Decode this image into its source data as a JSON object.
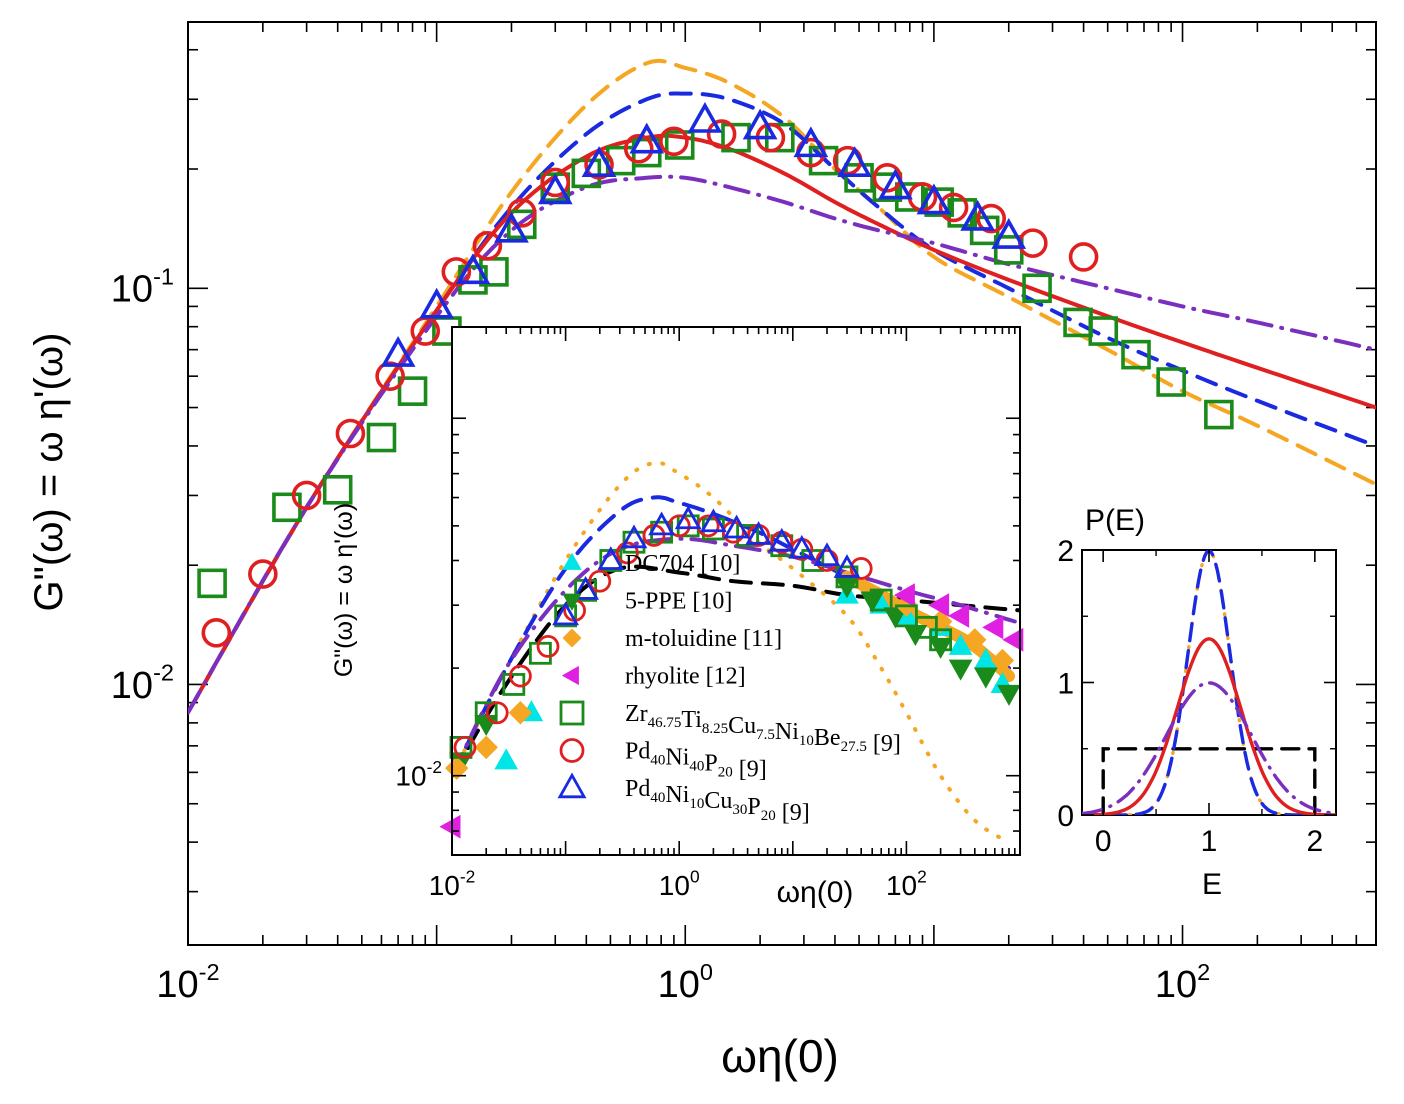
{
  "chart_data": [
    {
      "id": "main",
      "type": "line",
      "scale": "log-log",
      "xlabel": "ωη(0)",
      "ylabel": "G\"(ω) = ω η'(ω)",
      "xlim": [
        0.01,
        600
      ],
      "ylim": [
        0.0022,
        0.47
      ],
      "x_ticks": [
        {
          "value": 0.01,
          "base": "10",
          "exp": "-2"
        },
        {
          "value": 1,
          "base": "10",
          "exp": "0"
        },
        {
          "value": 100,
          "base": "10",
          "exp": "2"
        }
      ],
      "y_ticks": [
        {
          "value": 0.01,
          "base": "10",
          "exp": "-2"
        },
        {
          "value": 0.1,
          "base": "10",
          "exp": "-1"
        }
      ],
      "series": [
        {
          "name": "Zr46.75Ti8.25Cu7.5Ni10Be27.5 [9]",
          "marker": "square",
          "color": "#1a8a1a",
          "x": [
            0.0125,
            0.025,
            0.04,
            0.06,
            0.08,
            0.11,
            0.14,
            0.17,
            0.22,
            0.3,
            0.4,
            0.55,
            0.7,
            0.95,
            1.6,
            2.4,
            3.6,
            5.0,
            6.5,
            8.0,
            10.5,
            13,
            16,
            20,
            26,
            38,
            48,
            65,
            90,
            140
          ],
          "y": [
            0.018,
            0.028,
            0.031,
            0.042,
            0.055,
            0.078,
            0.105,
            0.11,
            0.145,
            0.18,
            0.195,
            0.21,
            0.22,
            0.23,
            0.24,
            0.24,
            0.21,
            0.19,
            0.18,
            0.17,
            0.165,
            0.155,
            0.14,
            0.125,
            0.1,
            0.082,
            0.078,
            0.068,
            0.058,
            0.048
          ]
        },
        {
          "name": "Pd40Ni40P20 [9]",
          "marker": "circle",
          "color": "#e02020",
          "x": [
            0.013,
            0.02,
            0.03,
            0.045,
            0.065,
            0.09,
            0.12,
            0.16,
            0.22,
            0.3,
            0.45,
            0.65,
            0.9,
            1.4,
            2.2,
            3.2,
            4.5,
            6.5,
            9,
            12,
            17,
            25,
            40
          ],
          "y": [
            0.0135,
            0.019,
            0.03,
            0.043,
            0.06,
            0.078,
            0.11,
            0.128,
            0.155,
            0.185,
            0.205,
            0.225,
            0.235,
            0.245,
            0.24,
            0.22,
            0.21,
            0.19,
            0.17,
            0.16,
            0.15,
            0.13,
            0.12
          ]
        },
        {
          "name": "Pd40Ni10Cu30P20 [9]",
          "marker": "triangle",
          "color": "#1a2ae0",
          "x": [
            0.07,
            0.1,
            0.14,
            0.2,
            0.3,
            0.45,
            0.7,
            1.2,
            2.0,
            3.2,
            4.8,
            7,
            10,
            15,
            20
          ],
          "y": [
            0.068,
            0.09,
            0.11,
            0.14,
            0.175,
            0.205,
            0.235,
            0.265,
            0.255,
            0.23,
            0.205,
            0.18,
            0.165,
            0.15,
            0.135
          ]
        }
      ],
      "curves": [
        {
          "name": "dashed-orange",
          "color": "#f5a623",
          "style": "dashed",
          "x": [
            0.01,
            0.03,
            0.1,
            0.2,
            0.4,
            0.7,
            1.0,
            1.5,
            2.5,
            4,
            6,
            10,
            20,
            50,
            100,
            200,
            600
          ],
          "y": [
            0.0085,
            0.028,
            0.09,
            0.175,
            0.29,
            0.37,
            0.36,
            0.33,
            0.27,
            0.2,
            0.16,
            0.12,
            0.095,
            0.07,
            0.055,
            0.045,
            0.032
          ]
        },
        {
          "name": "dashed-blue",
          "color": "#1a2ae0",
          "style": "dashed",
          "x": [
            0.01,
            0.03,
            0.1,
            0.2,
            0.4,
            0.7,
            1.0,
            1.5,
            2.5,
            4,
            6,
            10,
            20,
            50,
            100,
            200,
            600
          ],
          "y": [
            0.0085,
            0.028,
            0.088,
            0.16,
            0.245,
            0.3,
            0.31,
            0.3,
            0.26,
            0.2,
            0.16,
            0.125,
            0.1,
            0.075,
            0.062,
            0.052,
            0.04
          ]
        },
        {
          "name": "solid-red",
          "color": "#e02020",
          "style": "solid",
          "x": [
            0.01,
            0.03,
            0.1,
            0.2,
            0.4,
            0.7,
            1.0,
            1.5,
            2.5,
            4,
            6,
            10,
            20,
            50,
            100,
            200,
            600
          ],
          "y": [
            0.0085,
            0.028,
            0.088,
            0.155,
            0.215,
            0.24,
            0.24,
            0.225,
            0.195,
            0.165,
            0.145,
            0.125,
            0.105,
            0.085,
            0.073,
            0.063,
            0.05
          ]
        },
        {
          "name": "dashdot-purple",
          "color": "#7b2fbe",
          "style": "dashdot",
          "x": [
            0.01,
            0.03,
            0.1,
            0.2,
            0.4,
            0.7,
            1.0,
            1.5,
            2.5,
            4,
            6,
            10,
            20,
            50,
            100,
            200,
            600
          ],
          "y": [
            0.0085,
            0.028,
            0.085,
            0.14,
            0.18,
            0.19,
            0.19,
            0.18,
            0.165,
            0.15,
            0.14,
            0.13,
            0.115,
            0.1,
            0.09,
            0.082,
            0.07
          ]
        }
      ]
    },
    {
      "id": "inset-left",
      "type": "scatter",
      "scale": "log-log",
      "xlabel": "ωη(0)",
      "ylabel": "G\"(ω) = ω η'(ω)",
      "xlim": [
        0.01,
        1000
      ],
      "ylim": [
        0.006,
        0.18
      ],
      "x_ticks": [
        {
          "value": 0.01,
          "base": "10",
          "exp": "-2"
        },
        {
          "value": 1,
          "base": "10",
          "exp": "0"
        },
        {
          "value": 100,
          "base": "10",
          "exp": "2"
        }
      ],
      "y_ticks": [
        {
          "value": 0.01,
          "base": "10",
          "exp": "-2"
        }
      ],
      "legend": {
        "position": "bottom-center",
        "entries": [
          {
            "marker": "triangle-filled",
            "color": "#00e5e5",
            "label": "DC704 [10]"
          },
          {
            "marker": "triangle-down-filled",
            "color": "#1a8a1a",
            "label": "5-PPE [10]"
          },
          {
            "marker": "diamond-filled",
            "color": "#f5a623",
            "label": "m-toluidine [11]"
          },
          {
            "marker": "triangle-left-filled",
            "color": "#e020e0",
            "label": "rhyolite [12]"
          },
          {
            "marker": "square",
            "color": "#1a8a1a",
            "label": "Zr46.75Ti8.25Cu7.5Ni10Be27.5 [9]",
            "formula": [
              {
                "t": "Zr",
                "s": "46.75"
              },
              {
                "t": "Ti",
                "s": "8.25"
              },
              {
                "t": "Cu",
                "s": "7.5"
              },
              {
                "t": "Ni",
                "s": "10"
              },
              {
                "t": "Be",
                "s": "27.5"
              }
            ],
            "ref": " [9]"
          },
          {
            "marker": "circle",
            "color": "#e02020",
            "label": "Pd40Ni40P20 [9]",
            "formula": [
              {
                "t": "Pd",
                "s": "40"
              },
              {
                "t": "Ni",
                "s": "40"
              },
              {
                "t": "P",
                "s": "20"
              }
            ],
            "ref": " [9]"
          },
          {
            "marker": "triangle",
            "color": "#1a2ae0",
            "label": "Pd40Ni10Cu30P20 [9]",
            "formula": [
              {
                "t": "Pd",
                "s": "40"
              },
              {
                "t": "Ni",
                "s": "10"
              },
              {
                "t": "Cu",
                "s": "30"
              },
              {
                "t": "P",
                "s": "20"
              }
            ],
            "ref": " [9]"
          }
        ]
      },
      "series": [
        {
          "name": "DC704 [10]",
          "marker": "triangle-filled",
          "color": "#00e5e5",
          "x": [
            0.03,
            0.05,
            30,
            60,
            100,
            200,
            300,
            500,
            700
          ],
          "y": [
            0.011,
            0.015,
            0.032,
            0.03,
            0.028,
            0.026,
            0.023,
            0.021,
            0.018
          ]
        },
        {
          "name": "5-PPE [10]",
          "marker": "triangle-down-filled",
          "color": "#1a8a1a",
          "x": [
            0.012,
            0.02,
            30,
            50,
            80,
            120,
            200,
            300,
            500,
            800
          ],
          "y": [
            0.011,
            0.014,
            0.034,
            0.031,
            0.028,
            0.025,
            0.023,
            0.02,
            0.019,
            0.017
          ]
        },
        {
          "name": "m-toluidine [11]",
          "marker": "diamond-filled",
          "color": "#f5a623",
          "x": [
            0.011,
            0.02,
            0.04,
            100,
            200,
            400,
            700
          ],
          "y": [
            0.0105,
            0.012,
            0.015,
            0.03,
            0.027,
            0.024,
            0.021
          ]
        },
        {
          "name": "rhyolite [12]",
          "marker": "triangle-left-filled",
          "color": "#e020e0",
          "x": [
            0.01,
            100,
            200,
            300,
            600,
            900
          ],
          "y": [
            0.0072,
            0.032,
            0.03,
            0.028,
            0.026,
            0.024
          ]
        },
        {
          "name": "Zr46.75Ti8.25Cu7.5Ni10Be27.5 [9]",
          "marker": "square",
          "color": "#1a8a1a",
          "x": [
            0.012,
            0.02,
            0.035,
            0.06,
            0.1,
            0.15,
            0.25,
            0.4,
            0.7,
            1.2,
            2.0,
            4.0,
            8.0,
            15,
            30,
            60,
            100,
            150,
            200
          ],
          "y": [
            0.012,
            0.015,
            0.018,
            0.022,
            0.028,
            0.033,
            0.04,
            0.045,
            0.048,
            0.05,
            0.049,
            0.047,
            0.044,
            0.04,
            0.036,
            0.031,
            0.028,
            0.026,
            0.024
          ]
        },
        {
          "name": "Pd40Ni40P20 [9]",
          "marker": "circle",
          "color": "#e02020",
          "x": [
            0.013,
            0.025,
            0.04,
            0.07,
            0.12,
            0.2,
            0.35,
            0.6,
            1.0,
            1.8,
            3,
            5,
            8,
            12,
            20,
            40
          ],
          "y": [
            0.012,
            0.015,
            0.019,
            0.023,
            0.029,
            0.035,
            0.042,
            0.047,
            0.05,
            0.05,
            0.048,
            0.047,
            0.045,
            0.043,
            0.04,
            0.038
          ]
        },
        {
          "name": "Pd40Ni10Cu30P20 [9]",
          "marker": "triangle",
          "color": "#1a2ae0",
          "x": [
            0.1,
            0.15,
            0.25,
            0.4,
            0.7,
            1.2,
            2.0,
            3.2,
            5,
            8,
            12,
            20,
            30
          ],
          "y": [
            0.028,
            0.033,
            0.04,
            0.046,
            0.05,
            0.052,
            0.051,
            0.049,
            0.047,
            0.045,
            0.043,
            0.041,
            0.038
          ]
        }
      ],
      "curves": [
        {
          "name": "dashed-black",
          "color": "#000000",
          "style": "dashed",
          "x": [
            0.01,
            0.03,
            0.1,
            0.3,
            1,
            3,
            10,
            30,
            100,
            300,
            1000
          ],
          "y": [
            0.01,
            0.018,
            0.03,
            0.038,
            0.037,
            0.035,
            0.034,
            0.032,
            0.031,
            0.03,
            0.029
          ]
        },
        {
          "name": "dotted-orange",
          "color": "#f5a623",
          "style": "dotted",
          "x": [
            0.01,
            0.03,
            0.1,
            0.3,
            0.6,
            1,
            2,
            5,
            10,
            30,
            60,
            100,
            200,
            400,
            800
          ],
          "y": [
            0.01,
            0.02,
            0.04,
            0.065,
            0.075,
            0.07,
            0.06,
            0.045,
            0.038,
            0.028,
            0.02,
            0.015,
            0.01,
            0.0075,
            0.0065
          ]
        },
        {
          "name": "dashed-blue",
          "color": "#1a2ae0",
          "style": "dashed",
          "x": [
            0.01,
            0.03,
            0.1,
            0.3,
            0.6,
            1,
            2,
            5,
            10,
            30,
            100,
            300,
            800
          ],
          "y": [
            0.01,
            0.02,
            0.038,
            0.055,
            0.06,
            0.058,
            0.054,
            0.048,
            0.043,
            0.036,
            0.029,
            0.024,
            0.02
          ]
        },
        {
          "name": "dashdot-purple",
          "color": "#7b2fbe",
          "style": "dashdot",
          "x": [
            0.01,
            0.03,
            0.1,
            0.3,
            1,
            3,
            10,
            30,
            100,
            300,
            900
          ],
          "y": [
            0.01,
            0.02,
            0.033,
            0.043,
            0.046,
            0.044,
            0.041,
            0.037,
            0.033,
            0.03,
            0.027
          ]
        },
        {
          "name": "thick-orange",
          "color": "#f5a623",
          "style": "solid",
          "x": [
            30,
            60,
            100,
            200,
            400,
            800
          ],
          "y": [
            0.036,
            0.032,
            0.029,
            0.026,
            0.023,
            0.019
          ]
        }
      ]
    },
    {
      "id": "inset-right",
      "type": "line",
      "scale": "linear",
      "xlabel": "E",
      "ylabel": "P(E)",
      "xlim": [
        -0.2,
        2.2
      ],
      "ylim": [
        0,
        2
      ],
      "x_ticks": [
        0,
        1,
        2
      ],
      "y_ticks": [
        0,
        1,
        2
      ],
      "curves": [
        {
          "name": "dashed-black",
          "color": "#000000",
          "style": "dashed",
          "x": [
            0,
            0,
            2,
            2
          ],
          "y": [
            0,
            0.5,
            0.5,
            0
          ]
        },
        {
          "name": "dotted-orange",
          "color": "#f5a623",
          "style": "dotted",
          "gaussian": {
            "mu": 1,
            "sigma": 0.2
          }
        },
        {
          "name": "dashed-blue",
          "color": "#1a2ae0",
          "style": "dashed",
          "gaussian": {
            "mu": 1,
            "sigma": 0.2
          }
        },
        {
          "name": "solid-red",
          "color": "#e02020",
          "style": "solid",
          "gaussian": {
            "mu": 1,
            "sigma": 0.3
          }
        },
        {
          "name": "dashdot-purple",
          "color": "#7b2fbe",
          "style": "dashdot",
          "gaussian": {
            "mu": 1,
            "sigma": 0.4
          }
        }
      ]
    }
  ]
}
